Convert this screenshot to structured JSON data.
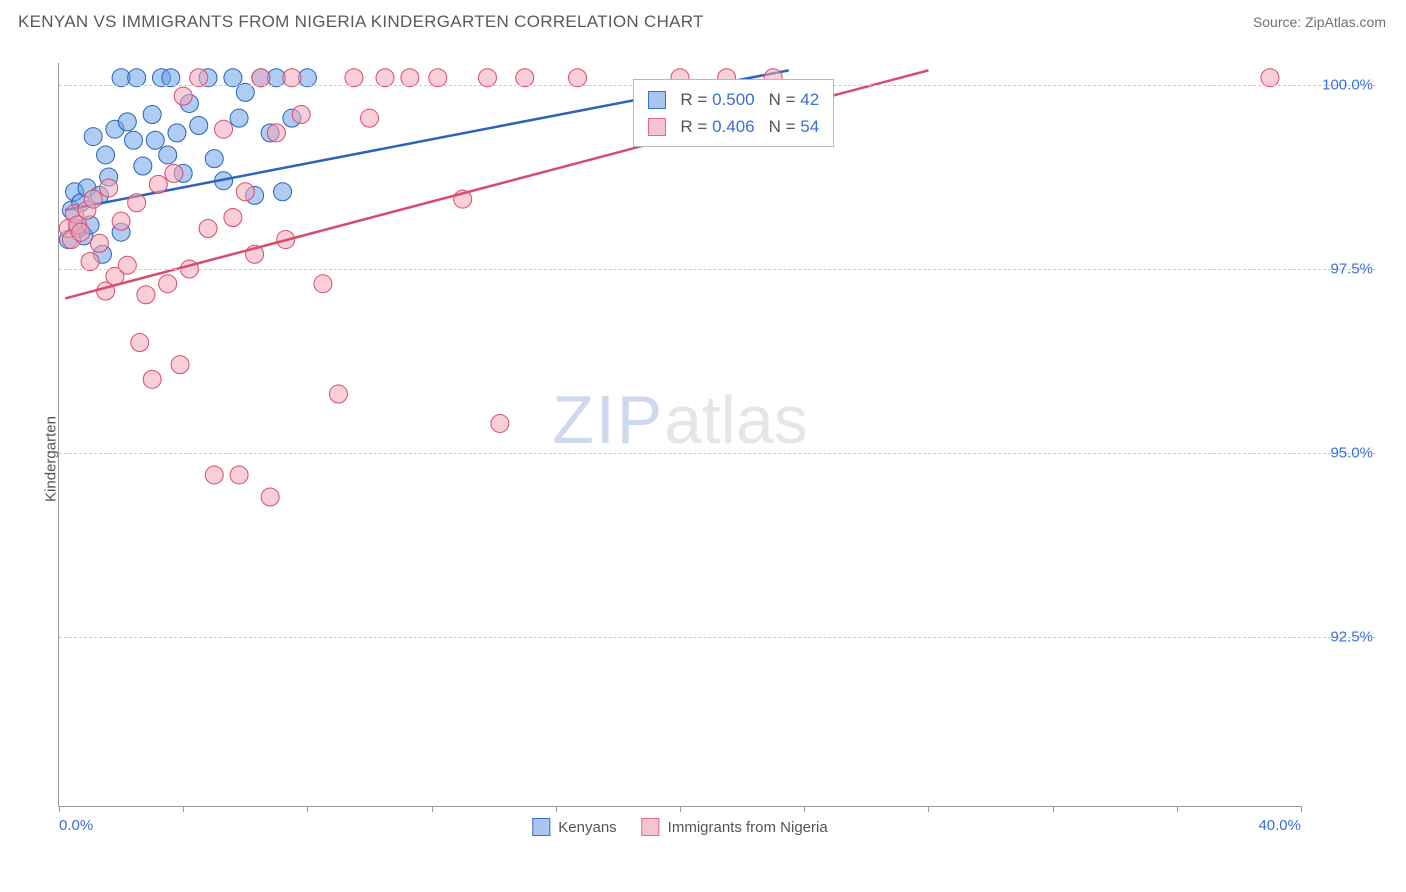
{
  "header": {
    "title": "KENYAN VS IMMIGRANTS FROM NIGERIA KINDERGARTEN CORRELATION CHART",
    "source_prefix": "Source: ",
    "source_link": "ZipAtlas.com"
  },
  "chart": {
    "type": "scatter",
    "ylabel": "Kindergarten",
    "watermark_a": "ZIP",
    "watermark_b": "atlas",
    "background_color": "#ffffff",
    "grid_color": "#cccccc",
    "axis_color": "#999999",
    "text_color": "#555555",
    "value_color": "#3a6fd8",
    "xlim": [
      0.0,
      40.0
    ],
    "ylim": [
      90.2,
      100.3
    ],
    "y_ticks": [
      {
        "value": 100.0,
        "label": "100.0%"
      },
      {
        "value": 97.5,
        "label": "97.5%"
      },
      {
        "value": 95.0,
        "label": "95.0%"
      },
      {
        "value": 92.5,
        "label": "92.5%"
      }
    ],
    "x_ticks_minor": [
      0,
      4,
      8,
      12,
      16,
      20,
      24,
      28,
      32,
      36,
      40
    ],
    "x_labels": [
      {
        "value": 0.0,
        "label": "0.0%",
        "align": "left"
      },
      {
        "value": 40.0,
        "label": "40.0%",
        "align": "right"
      }
    ],
    "marker_radius": 9,
    "marker_opacity": 0.55,
    "line_width": 2.5,
    "series": [
      {
        "id": "kenyans",
        "label": "Kenyans",
        "fill": "#6da3e8",
        "stroke": "#2b64b8",
        "swatch_fill": "#a8c6ef",
        "swatch_border": "#3a6fd8",
        "stats": {
          "R_label": "R = ",
          "R_value": "0.500",
          "N_label": "N = ",
          "N_value": "42"
        },
        "trend": {
          "x1": 0.2,
          "y1": 98.3,
          "x2": 23.5,
          "y2": 100.2
        },
        "data": [
          [
            0.3,
            97.9
          ],
          [
            0.4,
            98.3
          ],
          [
            0.5,
            98.55
          ],
          [
            0.6,
            98.05
          ],
          [
            0.7,
            98.4
          ],
          [
            0.8,
            97.95
          ],
          [
            0.9,
            98.6
          ],
          [
            1.0,
            98.1
          ],
          [
            1.1,
            99.3
          ],
          [
            1.3,
            98.5
          ],
          [
            1.4,
            97.7
          ],
          [
            1.5,
            99.05
          ],
          [
            1.6,
            98.75
          ],
          [
            1.8,
            99.4
          ],
          [
            2.0,
            98.0
          ],
          [
            2.0,
            100.1
          ],
          [
            2.2,
            99.5
          ],
          [
            2.4,
            99.25
          ],
          [
            2.5,
            100.1
          ],
          [
            2.7,
            98.9
          ],
          [
            3.0,
            99.6
          ],
          [
            3.1,
            99.25
          ],
          [
            3.3,
            100.1
          ],
          [
            3.5,
            99.05
          ],
          [
            3.6,
            100.1
          ],
          [
            3.8,
            99.35
          ],
          [
            4.0,
            98.8
          ],
          [
            4.2,
            99.75
          ],
          [
            4.5,
            99.45
          ],
          [
            4.8,
            100.1
          ],
          [
            5.0,
            99.0
          ],
          [
            5.3,
            98.7
          ],
          [
            5.6,
            100.1
          ],
          [
            5.8,
            99.55
          ],
          [
            6.0,
            99.9
          ],
          [
            6.3,
            98.5
          ],
          [
            6.5,
            100.1
          ],
          [
            6.8,
            99.35
          ],
          [
            7.0,
            100.1
          ],
          [
            7.2,
            98.55
          ],
          [
            7.5,
            99.55
          ],
          [
            8.0,
            100.1
          ]
        ]
      },
      {
        "id": "nigeria",
        "label": "Immigrants from Nigeria",
        "fill": "#f2a6b8",
        "stroke": "#d94b6c",
        "swatch_fill": "#f6c3d0",
        "swatch_border": "#e06a87",
        "stats": {
          "R_label": "R = ",
          "R_value": "0.406",
          "N_label": "N = ",
          "N_value": "54"
        },
        "trend": {
          "x1": 0.2,
          "y1": 97.1,
          "x2": 28.0,
          "y2": 100.2
        },
        "data": [
          [
            0.3,
            98.05
          ],
          [
            0.4,
            97.9
          ],
          [
            0.5,
            98.25
          ],
          [
            0.6,
            98.1
          ],
          [
            0.7,
            98.0
          ],
          [
            0.9,
            98.3
          ],
          [
            1.0,
            97.6
          ],
          [
            1.1,
            98.45
          ],
          [
            1.3,
            97.85
          ],
          [
            1.5,
            97.2
          ],
          [
            1.6,
            98.6
          ],
          [
            1.8,
            97.4
          ],
          [
            2.0,
            98.15
          ],
          [
            2.2,
            97.55
          ],
          [
            2.5,
            98.4
          ],
          [
            2.6,
            96.5
          ],
          [
            2.8,
            97.15
          ],
          [
            3.0,
            96.0
          ],
          [
            3.2,
            98.65
          ],
          [
            3.5,
            97.3
          ],
          [
            3.7,
            98.8
          ],
          [
            3.9,
            96.2
          ],
          [
            4.0,
            99.85
          ],
          [
            4.2,
            97.5
          ],
          [
            4.5,
            100.1
          ],
          [
            4.8,
            98.05
          ],
          [
            5.0,
            94.7
          ],
          [
            5.3,
            99.4
          ],
          [
            5.6,
            98.2
          ],
          [
            5.8,
            94.7
          ],
          [
            6.0,
            98.55
          ],
          [
            6.3,
            97.7
          ],
          [
            6.5,
            100.1
          ],
          [
            6.8,
            94.4
          ],
          [
            7.0,
            99.35
          ],
          [
            7.3,
            97.9
          ],
          [
            7.5,
            100.1
          ],
          [
            7.8,
            99.6
          ],
          [
            8.5,
            97.3
          ],
          [
            9.0,
            95.8
          ],
          [
            9.5,
            100.1
          ],
          [
            10.0,
            99.55
          ],
          [
            10.5,
            100.1
          ],
          [
            11.3,
            100.1
          ],
          [
            12.2,
            100.1
          ],
          [
            13.0,
            98.45
          ],
          [
            13.8,
            100.1
          ],
          [
            14.2,
            95.4
          ],
          [
            15.0,
            100.1
          ],
          [
            16.7,
            100.1
          ],
          [
            20.0,
            100.1
          ],
          [
            21.5,
            100.1
          ],
          [
            23.0,
            100.1
          ],
          [
            39.0,
            100.1
          ]
        ]
      }
    ],
    "stats_box": {
      "anchor_x": 18.5,
      "anchor_y": 100.0
    }
  }
}
